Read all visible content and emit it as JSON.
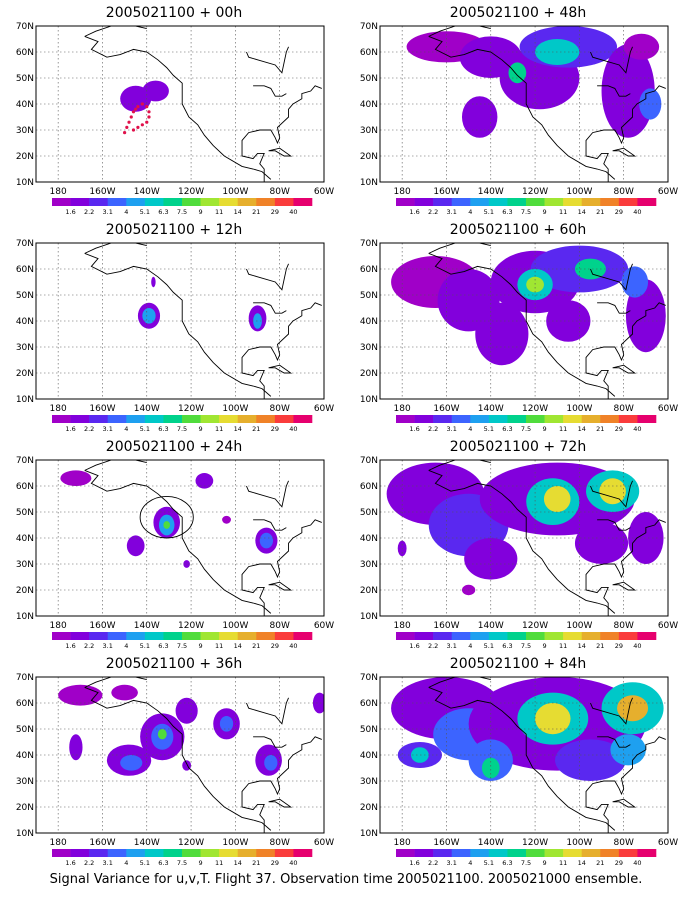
{
  "caption": "Signal Variance for u,v,T. Flight 37. Observation time 2005021100. 2005021000 ensemble.",
  "colorbar": {
    "labels": [
      "1.6",
      "2.2",
      "3.1",
      "4",
      "5.1",
      "6.3",
      "7.5",
      "9",
      "11",
      "14",
      "21",
      "29",
      "40"
    ],
    "colors": [
      "#a000c8",
      "#8200dc",
      "#5a28f0",
      "#3c64ff",
      "#1ea0f0",
      "#00c8c8",
      "#00d28c",
      "#50dc3c",
      "#a0e632",
      "#e6dc32",
      "#e6af2d",
      "#f08228",
      "#fa3c3c",
      "#e6006e"
    ]
  },
  "axes": {
    "lon_ticks": [
      "180",
      "160W",
      "140W",
      "120W",
      "100W",
      "80W",
      "60W"
    ],
    "lat_ticks": [
      "10N",
      "20N",
      "30N",
      "40N",
      "50N",
      "60N",
      "70N"
    ]
  },
  "panels": [
    {
      "title": "2005021100 + 00h",
      "flight_track": true,
      "blobs": [
        {
          "lon": -145,
          "lat": 42,
          "rx": 7,
          "ry": 5,
          "level": 1
        },
        {
          "lon": -136,
          "lat": 45,
          "rx": 6,
          "ry": 4,
          "level": 1
        }
      ]
    },
    {
      "title": "2005021100 + 12h",
      "blobs": [
        {
          "lon": -139,
          "lat": 42,
          "rx": 5,
          "ry": 5,
          "level": 1
        },
        {
          "lon": -139,
          "lat": 42,
          "rx": 3,
          "ry": 3,
          "level": 4
        },
        {
          "lon": -137,
          "lat": 55,
          "rx": 1,
          "ry": 2,
          "level": 1
        },
        {
          "lon": -90,
          "lat": 41,
          "rx": 4,
          "ry": 5,
          "level": 1
        },
        {
          "lon": -90,
          "lat": 40,
          "rx": 2,
          "ry": 3,
          "level": 4
        }
      ]
    },
    {
      "title": "2005021100 + 24h",
      "circle": true,
      "blobs": [
        {
          "lon": -172,
          "lat": 63,
          "rx": 7,
          "ry": 3,
          "level": 0
        },
        {
          "lon": -145,
          "lat": 37,
          "rx": 4,
          "ry": 4,
          "level": 1
        },
        {
          "lon": -131,
          "lat": 46,
          "rx": 6,
          "ry": 6,
          "level": 1
        },
        {
          "lon": -131,
          "lat": 45,
          "rx": 3.5,
          "ry": 4,
          "level": 4
        },
        {
          "lon": -131,
          "lat": 45,
          "rx": 1.5,
          "ry": 1.5,
          "level": 7
        },
        {
          "lon": -114,
          "lat": 62,
          "rx": 4,
          "ry": 3,
          "level": 1
        },
        {
          "lon": -104,
          "lat": 47,
          "rx": 2,
          "ry": 1.5,
          "level": 0
        },
        {
          "lon": -86,
          "lat": 39,
          "rx": 5,
          "ry": 5,
          "level": 1
        },
        {
          "lon": -86,
          "lat": 39,
          "rx": 3,
          "ry": 3,
          "level": 3
        },
        {
          "lon": -122,
          "lat": 30,
          "rx": 1.5,
          "ry": 1.5,
          "level": 1
        }
      ]
    },
    {
      "title": "2005021100 + 36h",
      "blobs": [
        {
          "lon": -170,
          "lat": 63,
          "rx": 10,
          "ry": 4,
          "level": 0
        },
        {
          "lon": -150,
          "lat": 64,
          "rx": 6,
          "ry": 3,
          "level": 0
        },
        {
          "lon": -133,
          "lat": 47,
          "rx": 10,
          "ry": 9,
          "level": 1
        },
        {
          "lon": -133,
          "lat": 47,
          "rx": 5,
          "ry": 5,
          "level": 3
        },
        {
          "lon": -133,
          "lat": 48,
          "rx": 2,
          "ry": 2,
          "level": 7
        },
        {
          "lon": -148,
          "lat": 38,
          "rx": 10,
          "ry": 6,
          "level": 1
        },
        {
          "lon": -147,
          "lat": 37,
          "rx": 5,
          "ry": 3,
          "level": 3
        },
        {
          "lon": -172,
          "lat": 43,
          "rx": 3,
          "ry": 5,
          "level": 1
        },
        {
          "lon": -122,
          "lat": 57,
          "rx": 5,
          "ry": 5,
          "level": 1
        },
        {
          "lon": -104,
          "lat": 52,
          "rx": 6,
          "ry": 6,
          "level": 1
        },
        {
          "lon": -104,
          "lat": 52,
          "rx": 3,
          "ry": 3,
          "level": 3
        },
        {
          "lon": -85,
          "lat": 38,
          "rx": 6,
          "ry": 6,
          "level": 1
        },
        {
          "lon": -84,
          "lat": 37,
          "rx": 3,
          "ry": 3,
          "level": 3
        },
        {
          "lon": -62,
          "lat": 60,
          "rx": 3,
          "ry": 4,
          "level": 1
        },
        {
          "lon": -122,
          "lat": 36,
          "rx": 2,
          "ry": 2,
          "level": 1
        }
      ]
    },
    {
      "title": "2005021100 + 48h",
      "blobs": [
        {
          "lon": -160,
          "lat": 62,
          "rx": 18,
          "ry": 6,
          "level": 0
        },
        {
          "lon": -140,
          "lat": 58,
          "rx": 14,
          "ry": 8,
          "level": 1
        },
        {
          "lon": -118,
          "lat": 50,
          "rx": 18,
          "ry": 12,
          "level": 1
        },
        {
          "lon": -105,
          "lat": 62,
          "rx": 22,
          "ry": 8,
          "level": 2
        },
        {
          "lon": -110,
          "lat": 60,
          "rx": 10,
          "ry": 5,
          "level": 5
        },
        {
          "lon": -128,
          "lat": 52,
          "rx": 4,
          "ry": 4,
          "level": 6
        },
        {
          "lon": -145,
          "lat": 35,
          "rx": 8,
          "ry": 8,
          "level": 1
        },
        {
          "lon": -78,
          "lat": 45,
          "rx": 12,
          "ry": 18,
          "level": 1
        },
        {
          "lon": -68,
          "lat": 40,
          "rx": 5,
          "ry": 6,
          "level": 3
        },
        {
          "lon": -72,
          "lat": 62,
          "rx": 8,
          "ry": 5,
          "level": 0
        }
      ]
    },
    {
      "title": "2005021100 + 60h",
      "blobs": [
        {
          "lon": -165,
          "lat": 55,
          "rx": 20,
          "ry": 10,
          "level": 0
        },
        {
          "lon": -150,
          "lat": 48,
          "rx": 14,
          "ry": 12,
          "level": 1
        },
        {
          "lon": -120,
          "lat": 55,
          "rx": 20,
          "ry": 12,
          "level": 1
        },
        {
          "lon": -100,
          "lat": 60,
          "rx": 22,
          "ry": 9,
          "level": 2
        },
        {
          "lon": -120,
          "lat": 54,
          "rx": 8,
          "ry": 6,
          "level": 5
        },
        {
          "lon": -120,
          "lat": 54,
          "rx": 4,
          "ry": 3,
          "level": 8
        },
        {
          "lon": -95,
          "lat": 60,
          "rx": 7,
          "ry": 4,
          "level": 6
        },
        {
          "lon": -135,
          "lat": 35,
          "rx": 12,
          "ry": 12,
          "level": 1
        },
        {
          "lon": -105,
          "lat": 40,
          "rx": 10,
          "ry": 8,
          "level": 1
        },
        {
          "lon": -70,
          "lat": 42,
          "rx": 9,
          "ry": 14,
          "level": 1
        },
        {
          "lon": -75,
          "lat": 55,
          "rx": 6,
          "ry": 6,
          "level": 3
        }
      ]
    },
    {
      "title": "2005021100 + 72h",
      "blobs": [
        {
          "lon": -165,
          "lat": 57,
          "rx": 22,
          "ry": 12,
          "level": 1
        },
        {
          "lon": -150,
          "lat": 45,
          "rx": 18,
          "ry": 12,
          "level": 2
        },
        {
          "lon": -110,
          "lat": 55,
          "rx": 35,
          "ry": 14,
          "level": 1
        },
        {
          "lon": -112,
          "lat": 54,
          "rx": 12,
          "ry": 9,
          "level": 5
        },
        {
          "lon": -110,
          "lat": 55,
          "rx": 6,
          "ry": 5,
          "level": 9
        },
        {
          "lon": -85,
          "lat": 58,
          "rx": 12,
          "ry": 8,
          "level": 5
        },
        {
          "lon": -85,
          "lat": 58,
          "rx": 6,
          "ry": 5,
          "level": 9
        },
        {
          "lon": -140,
          "lat": 32,
          "rx": 12,
          "ry": 8,
          "level": 1
        },
        {
          "lon": -150,
          "lat": 20,
          "rx": 3,
          "ry": 2,
          "level": 0
        },
        {
          "lon": -90,
          "lat": 38,
          "rx": 12,
          "ry": 8,
          "level": 1
        },
        {
          "lon": -70,
          "lat": 40,
          "rx": 8,
          "ry": 10,
          "level": 1
        },
        {
          "lon": -180,
          "lat": 36,
          "rx": 2,
          "ry": 3,
          "level": 1
        }
      ]
    },
    {
      "title": "2005021100 + 84h",
      "blobs": [
        {
          "lon": -160,
          "lat": 58,
          "rx": 25,
          "ry": 12,
          "level": 1
        },
        {
          "lon": -150,
          "lat": 48,
          "rx": 16,
          "ry": 10,
          "level": 3
        },
        {
          "lon": -172,
          "lat": 40,
          "rx": 10,
          "ry": 5,
          "level": 2
        },
        {
          "lon": -172,
          "lat": 40,
          "rx": 4,
          "ry": 3,
          "level": 5
        },
        {
          "lon": -110,
          "lat": 52,
          "rx": 40,
          "ry": 18,
          "level": 1
        },
        {
          "lon": -112,
          "lat": 54,
          "rx": 16,
          "ry": 10,
          "level": 5
        },
        {
          "lon": -112,
          "lat": 54,
          "rx": 8,
          "ry": 6,
          "level": 9
        },
        {
          "lon": -76,
          "lat": 58,
          "rx": 14,
          "ry": 10,
          "level": 5
        },
        {
          "lon": -76,
          "lat": 58,
          "rx": 7,
          "ry": 5,
          "level": 10
        },
        {
          "lon": -140,
          "lat": 38,
          "rx": 10,
          "ry": 8,
          "level": 3
        },
        {
          "lon": -140,
          "lat": 35,
          "rx": 4,
          "ry": 4,
          "level": 6
        },
        {
          "lon": -95,
          "lat": 38,
          "rx": 16,
          "ry": 8,
          "level": 2
        },
        {
          "lon": -78,
          "lat": 42,
          "rx": 8,
          "ry": 6,
          "level": 4
        }
      ]
    }
  ]
}
